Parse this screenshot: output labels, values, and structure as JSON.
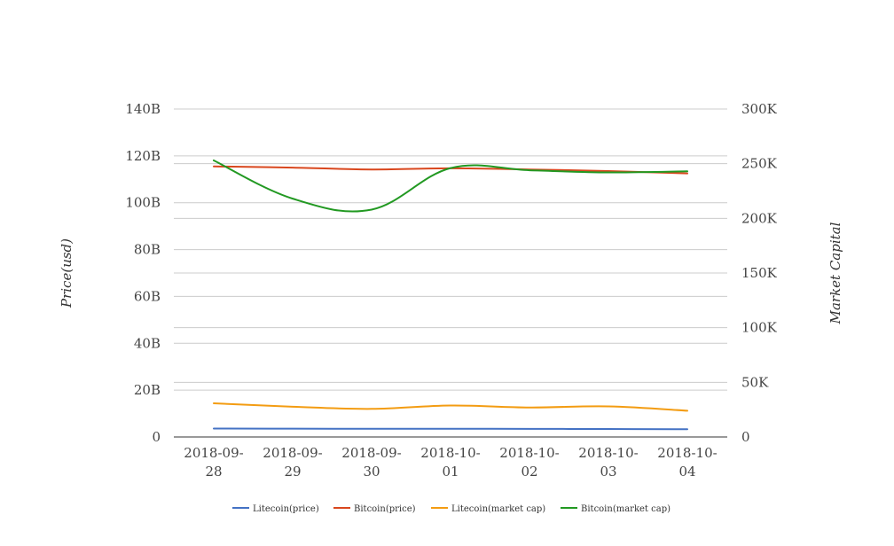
{
  "chart_data": {
    "type": "line",
    "title": "",
    "categories": [
      "2018-09-28",
      "2018-09-29",
      "2018-09-30",
      "2018-10-01",
      "2018-10-02",
      "2018-10-03",
      "2018-10-04"
    ],
    "category_lines": [
      [
        "2018-09-",
        "28"
      ],
      [
        "2018-09-",
        "29"
      ],
      [
        "2018-09-",
        "30"
      ],
      [
        "2018-10-",
        "01"
      ],
      [
        "2018-10-",
        "02"
      ],
      [
        "2018-10-",
        "03"
      ],
      [
        "2018-10-",
        "04"
      ]
    ],
    "y_left": {
      "label": "Price(usd)",
      "range": [
        0,
        140000000000
      ],
      "ticks": [
        0,
        20000000000,
        40000000000,
        60000000000,
        80000000000,
        100000000000,
        120000000000,
        140000000000
      ],
      "tick_labels": [
        "0",
        "20B",
        "40B",
        "60B",
        "80B",
        "100B",
        "120B",
        "140B"
      ]
    },
    "y_right": {
      "label": "Market Capital",
      "range": [
        0,
        300000
      ],
      "ticks": [
        0,
        50000,
        100000,
        150000,
        200000,
        250000,
        300000
      ],
      "tick_labels": [
        "0",
        "50K",
        "100K",
        "150K",
        "200K",
        "250K",
        "300K"
      ]
    },
    "grid": true,
    "legend_position": "bottom",
    "series": [
      {
        "name": "Litecoin(price)",
        "color": "#4472c4",
        "axis": "left",
        "values": [
          3600000000,
          3550000000,
          3500000000,
          3500000000,
          3450000000,
          3400000000,
          3300000000
        ]
      },
      {
        "name": "Bitcoin(price)",
        "color": "#d9471e",
        "axis": "left",
        "values": [
          115500000000,
          115000000000,
          114200000000,
          114700000000,
          114200000000,
          113500000000,
          112500000000
        ]
      },
      {
        "name": "Litecoin(market cap)",
        "color": "#f39c12",
        "axis": "right",
        "values": [
          30800,
          27700,
          25700,
          28800,
          27000,
          28000,
          24000
        ]
      },
      {
        "name": "Bitcoin(market cap)",
        "color": "#229922",
        "axis": "right",
        "values": [
          253000,
          218000,
          208000,
          246000,
          244000,
          242000,
          243000
        ]
      }
    ]
  }
}
